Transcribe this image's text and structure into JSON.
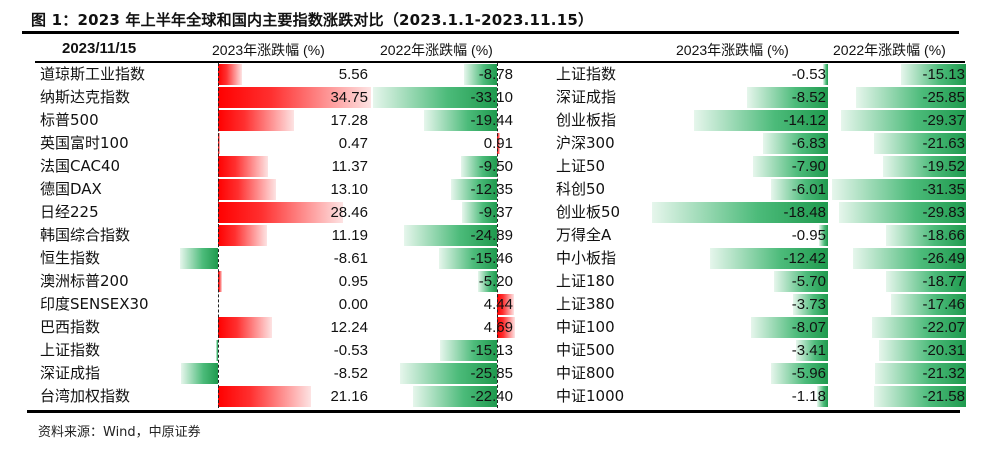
{
  "title": "图 1：2023 年上半年全球和国内主要指数涨跌对比（2023.1.1-2023.11.15）",
  "source": "资料来源：Wind，中原证券",
  "left_table": {
    "date_header": "2023/11/15",
    "col_2023_header": "2023年涨跌幅 (%)",
    "col_2022_header": "2022年涨跌幅 (%)",
    "rows": [
      {
        "name": "道琼斯工业指数",
        "v2023": "5.56",
        "v2022": "-8.78"
      },
      {
        "name": "纳斯达克指数",
        "v2023": "34.75",
        "v2022": "-33.10"
      },
      {
        "name": "标普500",
        "v2023": "17.28",
        "v2022": "-19.44"
      },
      {
        "name": "英国富时100",
        "v2023": "0.47",
        "v2022": "0.91"
      },
      {
        "name": "法国CAC40",
        "v2023": "11.37",
        "v2022": "-9.50"
      },
      {
        "name": "德国DAX",
        "v2023": "13.10",
        "v2022": "-12.35"
      },
      {
        "name": "日经225",
        "v2023": "28.46",
        "v2022": "-9.37"
      },
      {
        "name": "韩国综合指数",
        "v2023": "11.19",
        "v2022": "-24.89"
      },
      {
        "name": "恒生指数",
        "v2023": "-8.61",
        "v2022": "-15.46"
      },
      {
        "name": "澳洲标普200",
        "v2023": "0.95",
        "v2022": "-5.20"
      },
      {
        "name": "印度SENSEX30",
        "v2023": "0.00",
        "v2022": "4.44"
      },
      {
        "name": "巴西指数",
        "v2023": "12.24",
        "v2022": "4.69"
      },
      {
        "name": "上证指数",
        "v2023": "-0.53",
        "v2022": "-15.13"
      },
      {
        "name": "深证成指",
        "v2023": "-8.52",
        "v2022": "-25.85"
      },
      {
        "name": "台湾加权指数",
        "v2023": "21.16",
        "v2022": "-22.40"
      }
    ]
  },
  "right_table": {
    "col_2023_header": "2023年涨跌幅 (%)",
    "col_2022_header": "2022年涨跌幅 (%)",
    "rows": [
      {
        "name": "上证指数",
        "v2023": "-0.53",
        "v2022": "-15.13"
      },
      {
        "name": "深证成指",
        "v2023": "-8.52",
        "v2022": "-25.85"
      },
      {
        "name": "创业板指",
        "v2023": "-14.12",
        "v2022": "-29.37"
      },
      {
        "name": "沪深300",
        "v2023": "-6.83",
        "v2022": "-21.63"
      },
      {
        "name": "上证50",
        "v2023": "-7.90",
        "v2022": "-19.52"
      },
      {
        "name": "科创50",
        "v2023": "-6.01",
        "v2022": "-31.35"
      },
      {
        "name": "创业板50",
        "v2023": "-18.48",
        "v2022": "-29.83"
      },
      {
        "name": "万得全A",
        "v2023": "-0.95",
        "v2022": "-18.66"
      },
      {
        "name": "中小板指",
        "v2023": "-12.42",
        "v2022": "-26.49"
      },
      {
        "name": "上证180",
        "v2023": "-5.70",
        "v2022": "-18.77"
      },
      {
        "name": "上证380",
        "v2023": "-3.73",
        "v2022": "-17.46"
      },
      {
        "name": "中证100",
        "v2023": "-8.07",
        "v2022": "-22.07"
      },
      {
        "name": "中证500",
        "v2023": "-3.41",
        "v2022": "-20.31"
      },
      {
        "name": "中证800",
        "v2023": "-5.96",
        "v2022": "-21.32"
      },
      {
        "name": "中证1000",
        "v2023": "-1.18",
        "v2022": "-21.58"
      }
    ]
  },
  "colors": {
    "positive": "#ff0000",
    "negative": "#1f9a4e"
  },
  "chart_data": [
    {
      "type": "table",
      "title": "图 1：2023 年上半年全球和国内主要指数涨跌对比（2023.1.1-2023.11.15）",
      "subtitle": "全球主要指数（数据条）",
      "columns": [
        "2023/11/15",
        "2023年涨跌幅 (%)",
        "2022年涨跌幅 (%)"
      ],
      "categories": [
        "道琼斯工业指数",
        "纳斯达克指数",
        "标普500",
        "英国富时100",
        "法国CAC40",
        "德国DAX",
        "日经225",
        "韩国综合指数",
        "恒生指数",
        "澳洲标普200",
        "印度SENSEX30",
        "巴西指数",
        "上证指数",
        "深证成指",
        "台湾加权指数"
      ],
      "series": [
        {
          "name": "2023年涨跌幅 (%)",
          "values": [
            5.56,
            34.75,
            17.28,
            0.47,
            11.37,
            13.1,
            28.46,
            11.19,
            -8.61,
            0.95,
            0.0,
            12.24,
            -0.53,
            -8.52,
            21.16
          ]
        },
        {
          "name": "2022年涨跌幅 (%)",
          "values": [
            -8.78,
            -33.1,
            -19.44,
            0.91,
            -9.5,
            -12.35,
            -9.37,
            -24.89,
            -15.46,
            -5.2,
            4.44,
            4.69,
            -15.13,
            -25.85,
            -22.4
          ]
        }
      ]
    },
    {
      "type": "table",
      "subtitle": "国内主要指数（数据条）",
      "columns": [
        "",
        "2023年涨跌幅 (%)",
        "2022年涨跌幅 (%)"
      ],
      "categories": [
        "上证指数",
        "深证成指",
        "创业板指",
        "沪深300",
        "上证50",
        "科创50",
        "创业板50",
        "万得全A",
        "中小板指",
        "上证180",
        "上证380",
        "中证100",
        "中证500",
        "中证800",
        "中证1000"
      ],
      "series": [
        {
          "name": "2023年涨跌幅 (%)",
          "values": [
            -0.53,
            -8.52,
            -14.12,
            -6.83,
            -7.9,
            -6.01,
            -18.48,
            -0.95,
            -12.42,
            -5.7,
            -3.73,
            -8.07,
            -3.41,
            -5.96,
            -1.18
          ]
        },
        {
          "name": "2022年涨跌幅 (%)",
          "values": [
            -15.13,
            -25.85,
            -29.37,
            -21.63,
            -19.52,
            -31.35,
            -29.83,
            -18.66,
            -26.49,
            -18.77,
            -17.46,
            -22.07,
            -20.31,
            -21.32,
            -21.58
          ]
        }
      ]
    }
  ]
}
